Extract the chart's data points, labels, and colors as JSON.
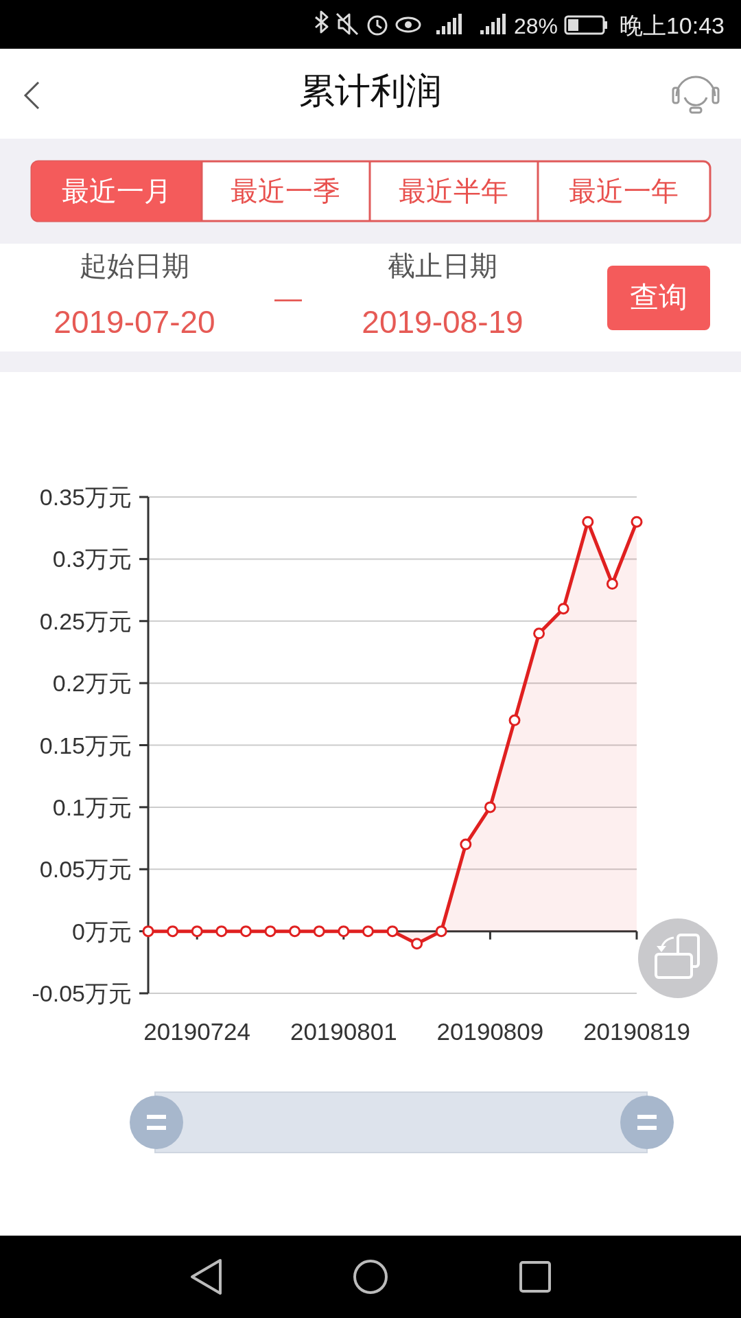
{
  "chart_data": {
    "type": "area",
    "title": "累计利润",
    "categories": [
      null,
      null,
      "20190724",
      null,
      null,
      null,
      null,
      null,
      "20190801",
      null,
      null,
      null,
      null,
      null,
      "20190809",
      null,
      null,
      null,
      null,
      null,
      "20190819"
    ],
    "series": [
      {
        "color": "#e02020",
        "values": [
          0,
          0,
          0,
          0,
          0,
          0,
          0,
          0,
          0,
          0,
          0,
          -0.01,
          0,
          0.07,
          0.1,
          0.17,
          0.24,
          0.26,
          0.33,
          0.28,
          0.33
        ]
      }
    ],
    "ylim": [
      -0.05,
      0.35
    ],
    "yticks": [
      {
        "value": -0.05,
        "label": "-0.05万元"
      },
      {
        "value": 0,
        "label": "0万元"
      },
      {
        "value": 0.05,
        "label": "0.05万元"
      },
      {
        "value": 0.1,
        "label": "0.1万元"
      },
      {
        "value": 0.15,
        "label": "0.15万元"
      },
      {
        "value": 0.2,
        "label": "0.2万元"
      },
      {
        "value": 0.25,
        "label": "0.25万元"
      },
      {
        "value": 0.3,
        "label": "0.3万元"
      },
      {
        "value": 0.35,
        "label": "0.35万元"
      }
    ],
    "grid": "y",
    "marker": "circle",
    "line_style": "solid",
    "annotations": [
      "28%",
      "晚上10:43",
      "最近一月",
      "最近一季",
      "最近半年",
      "最近一年",
      "起始日期",
      "2019-07-20",
      "—",
      "截止日期",
      "2019-08-19",
      "查询"
    ]
  }
}
